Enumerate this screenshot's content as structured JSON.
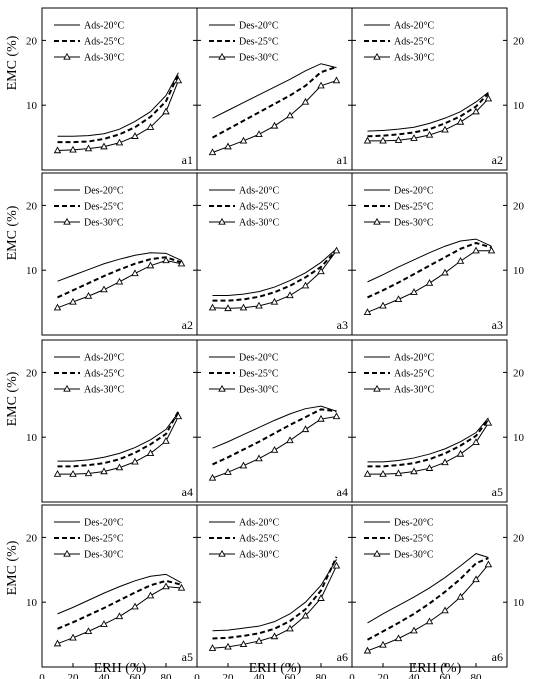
{
  "chart_data": [
    {
      "type": "line",
      "panel_label": "a1",
      "x": [
        10,
        20,
        30,
        40,
        50,
        60,
        70,
        80,
        88
      ],
      "series": [
        {
          "name": "Ads-20°C",
          "style": "solid",
          "values": [
            5.2,
            5.2,
            5.3,
            5.6,
            6.3,
            7.5,
            9.0,
            11.5,
            15.0
          ]
        },
        {
          "name": "Ads-25°C",
          "style": "dashed",
          "values": [
            4.3,
            4.3,
            4.4,
            4.8,
            5.5,
            6.6,
            8.2,
            10.6,
            14.8
          ]
        },
        {
          "name": "Ads-30°C",
          "style": "triangle",
          "values": [
            3.0,
            3.1,
            3.3,
            3.6,
            4.2,
            5.2,
            6.6,
            9.0,
            13.8
          ]
        }
      ]
    },
    {
      "type": "line",
      "panel_label": "a1",
      "x": [
        10,
        20,
        30,
        40,
        50,
        60,
        70,
        80,
        90
      ],
      "series": [
        {
          "name": "Des-20°C",
          "style": "solid",
          "values": [
            8.0,
            9.2,
            10.4,
            11.6,
            12.8,
            14.0,
            15.3,
            16.4,
            15.8
          ]
        },
        {
          "name": "Des-25°C",
          "style": "dashed",
          "values": [
            5.0,
            6.3,
            7.6,
            8.9,
            10.2,
            11.5,
            13.0,
            15.1,
            15.9
          ]
        },
        {
          "name": "Des-30°C",
          "style": "triangle",
          "values": [
            2.7,
            3.6,
            4.5,
            5.5,
            6.8,
            8.4,
            10.5,
            13.0,
            13.8
          ]
        }
      ]
    },
    {
      "type": "line",
      "panel_label": "a2",
      "x": [
        10,
        20,
        30,
        40,
        50,
        60,
        70,
        80,
        88
      ],
      "series": [
        {
          "name": "Ads-20°C",
          "style": "solid",
          "values": [
            6.0,
            6.1,
            6.3,
            6.6,
            7.2,
            8.0,
            9.0,
            10.5,
            12.0
          ]
        },
        {
          "name": "Ads-25°C",
          "style": "dashed",
          "values": [
            5.2,
            5.3,
            5.5,
            5.8,
            6.3,
            7.2,
            8.3,
            9.8,
            11.8
          ]
        },
        {
          "name": "Ads-30°C",
          "style": "triangle",
          "values": [
            4.5,
            4.5,
            4.6,
            4.9,
            5.4,
            6.2,
            7.4,
            9.0,
            11.0
          ]
        }
      ]
    },
    {
      "type": "line",
      "panel_label": "a2",
      "x": [
        10,
        20,
        30,
        40,
        50,
        60,
        70,
        80,
        90
      ],
      "series": [
        {
          "name": "Des-20°C",
          "style": "solid",
          "values": [
            8.3,
            9.2,
            10.1,
            11.0,
            11.7,
            12.3,
            12.7,
            12.6,
            11.5
          ]
        },
        {
          "name": "Des-25°C",
          "style": "dashed",
          "values": [
            5.8,
            6.9,
            8.0,
            9.1,
            10.1,
            11.0,
            11.7,
            12.0,
            11.2
          ]
        },
        {
          "name": "Des-30°C",
          "style": "triangle",
          "values": [
            4.2,
            5.1,
            6.0,
            7.0,
            8.2,
            9.5,
            10.7,
            11.5,
            11.0
          ]
        }
      ]
    },
    {
      "type": "line",
      "panel_label": "a3",
      "x": [
        10,
        20,
        30,
        40,
        50,
        60,
        70,
        80,
        90
      ],
      "series": [
        {
          "name": "Ads-20°C",
          "style": "solid",
          "values": [
            6.1,
            6.1,
            6.3,
            6.7,
            7.4,
            8.4,
            9.6,
            11.2,
            13.3
          ]
        },
        {
          "name": "Ads-25°C",
          "style": "dashed",
          "values": [
            5.3,
            5.3,
            5.5,
            5.9,
            6.6,
            7.6,
            8.9,
            10.5,
            13.1
          ]
        },
        {
          "name": "Ads-30°C",
          "style": "triangle",
          "values": [
            4.2,
            4.1,
            4.2,
            4.5,
            5.1,
            6.1,
            7.6,
            9.8,
            13.0
          ]
        }
      ]
    },
    {
      "type": "line",
      "panel_label": "a3",
      "x": [
        10,
        20,
        30,
        40,
        50,
        60,
        70,
        80,
        90
      ],
      "series": [
        {
          "name": "Des-20°C",
          "style": "solid",
          "values": [
            8.2,
            9.3,
            10.5,
            11.6,
            12.7,
            13.7,
            14.5,
            14.8,
            13.7
          ]
        },
        {
          "name": "Des-25°C",
          "style": "dashed",
          "values": [
            5.8,
            6.9,
            8.1,
            9.4,
            10.7,
            12.0,
            13.3,
            14.2,
            13.5
          ]
        },
        {
          "name": "Des-30°C",
          "style": "triangle",
          "values": [
            3.5,
            4.5,
            5.5,
            6.6,
            8.0,
            9.6,
            11.4,
            13.0,
            13.0
          ]
        }
      ]
    },
    {
      "type": "line",
      "panel_label": "a4",
      "x": [
        10,
        20,
        30,
        40,
        50,
        60,
        70,
        80,
        88
      ],
      "series": [
        {
          "name": "Ads-20°C",
          "style": "solid",
          "values": [
            6.3,
            6.3,
            6.5,
            6.9,
            7.5,
            8.4,
            9.6,
            11.2,
            13.8
          ]
        },
        {
          "name": "Ads-25°C",
          "style": "dashed",
          "values": [
            5.5,
            5.5,
            5.7,
            6.0,
            6.6,
            7.6,
            8.9,
            10.5,
            14.0
          ]
        },
        {
          "name": "Ads-30°C",
          "style": "triangle",
          "values": [
            4.3,
            4.3,
            4.4,
            4.7,
            5.3,
            6.2,
            7.5,
            9.4,
            13.2
          ]
        }
      ]
    },
    {
      "type": "line",
      "panel_label": "a4",
      "x": [
        10,
        20,
        30,
        40,
        50,
        60,
        70,
        80,
        90
      ],
      "series": [
        {
          "name": "Des-20°C",
          "style": "solid",
          "values": [
            8.3,
            9.3,
            10.4,
            11.5,
            12.6,
            13.6,
            14.4,
            14.8,
            14.0
          ]
        },
        {
          "name": "Des-25°C",
          "style": "dashed",
          "values": [
            5.8,
            6.9,
            8.1,
            9.3,
            10.6,
            11.9,
            13.1,
            14.3,
            14.0
          ]
        },
        {
          "name": "Des-30°C",
          "style": "triangle",
          "values": [
            3.7,
            4.6,
            5.6,
            6.7,
            8.0,
            9.5,
            11.2,
            12.8,
            13.2
          ]
        }
      ]
    },
    {
      "type": "line",
      "panel_label": "a5",
      "x": [
        10,
        20,
        30,
        40,
        50,
        60,
        70,
        80,
        88
      ],
      "series": [
        {
          "name": "Ads-20°C",
          "style": "solid",
          "values": [
            6.2,
            6.2,
            6.4,
            6.8,
            7.4,
            8.2,
            9.3,
            10.7,
            13.0
          ]
        },
        {
          "name": "Ads-25°C",
          "style": "dashed",
          "values": [
            5.5,
            5.5,
            5.7,
            6.0,
            6.6,
            7.5,
            8.7,
            10.2,
            12.8
          ]
        },
        {
          "name": "Ads-30°C",
          "style": "triangle",
          "values": [
            4.3,
            4.3,
            4.4,
            4.7,
            5.2,
            6.1,
            7.4,
            9.2,
            12.2
          ]
        }
      ]
    },
    {
      "type": "line",
      "panel_label": "a5",
      "x": [
        10,
        20,
        30,
        40,
        50,
        60,
        70,
        80,
        90
      ],
      "series": [
        {
          "name": "Des-20°C",
          "style": "solid",
          "values": [
            8.2,
            9.2,
            10.3,
            11.4,
            12.4,
            13.3,
            14.0,
            14.3,
            13.0
          ]
        },
        {
          "name": "Des-25°C",
          "style": "dashed",
          "values": [
            5.9,
            6.9,
            8.0,
            9.1,
            10.3,
            11.5,
            12.6,
            13.3,
            12.7
          ]
        },
        {
          "name": "Des-30°C",
          "style": "triangle",
          "values": [
            3.6,
            4.5,
            5.5,
            6.6,
            7.8,
            9.3,
            11.0,
            12.4,
            12.2
          ]
        }
      ]
    },
    {
      "type": "line",
      "panel_label": "a6",
      "x": [
        10,
        20,
        30,
        40,
        50,
        60,
        70,
        80,
        90
      ],
      "series": [
        {
          "name": "Ads-20°C",
          "style": "solid",
          "values": [
            5.6,
            5.7,
            6.0,
            6.3,
            7.0,
            8.2,
            10.0,
            12.6,
            16.6
          ]
        },
        {
          "name": "Ads-25°C",
          "style": "dashed",
          "values": [
            4.4,
            4.5,
            4.8,
            5.2,
            5.9,
            7.1,
            8.9,
            11.8,
            17.0
          ]
        },
        {
          "name": "Ads-30°C",
          "style": "triangle",
          "values": [
            2.9,
            3.1,
            3.5,
            4.0,
            4.7,
            5.9,
            7.9,
            10.6,
            15.6
          ]
        }
      ]
    },
    {
      "type": "line",
      "panel_label": "a6",
      "x": [
        10,
        20,
        30,
        40,
        50,
        60,
        70,
        80,
        88
      ],
      "series": [
        {
          "name": "Des-20°C",
          "style": "solid",
          "values": [
            6.8,
            8.2,
            9.5,
            10.8,
            12.2,
            13.8,
            15.6,
            17.5,
            16.9
          ]
        },
        {
          "name": "Des-25°C",
          "style": "dashed",
          "values": [
            4.2,
            5.5,
            6.8,
            8.2,
            9.8,
            11.6,
            13.6,
            16.0,
            16.8
          ]
        },
        {
          "name": "Des-30°C",
          "style": "triangle",
          "values": [
            2.5,
            3.4,
            4.4,
            5.6,
            7.0,
            8.7,
            10.8,
            13.5,
            15.8
          ]
        }
      ]
    }
  ],
  "axes": {
    "ylabel": "EMC (%)",
    "xlabel": "ERH (%)",
    "xlim": [
      0,
      100
    ],
    "ylim": [
      0,
      25
    ],
    "xticks": [
      "0",
      "20",
      "40",
      "60",
      "80"
    ],
    "yticks": [
      "10",
      "20"
    ],
    "grid": false,
    "legend_position": "top-left"
  }
}
